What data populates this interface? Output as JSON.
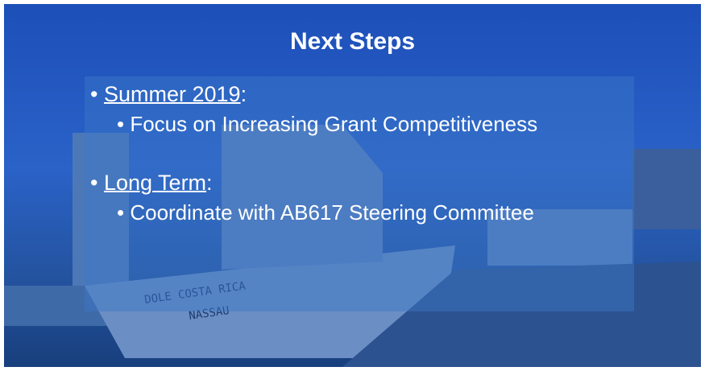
{
  "slide": {
    "title": "Next Steps",
    "bullets": [
      {
        "heading": "Summer 2019",
        "suffix": ":",
        "sub": [
          "Focus on Increasing Grant Competitiveness"
        ]
      },
      {
        "heading": "Long Term",
        "suffix": ":",
        "sub": [
          "Coordinate with AB617 Steering Committee"
        ]
      }
    ],
    "photo_text": [
      "DOLE COSTA RICA",
      "NASSAU"
    ]
  }
}
